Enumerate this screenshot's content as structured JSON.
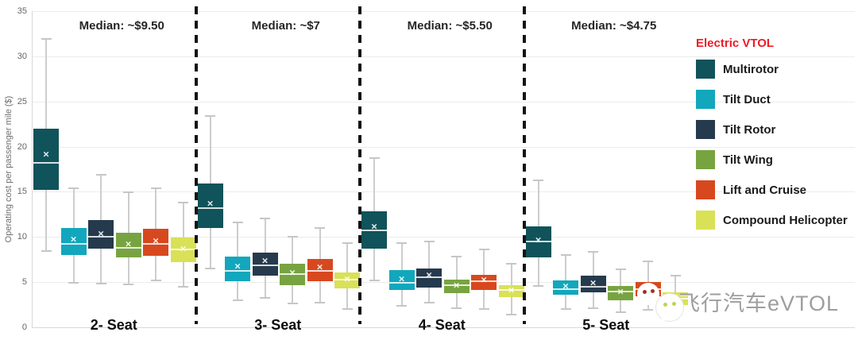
{
  "watermark": {
    "text": "飞行汽车eVTOL"
  },
  "legend": {
    "title": "Electric VTOL",
    "title_color": "#EC1B25",
    "items": [
      {
        "label": "Multirotor",
        "color": "#10535A"
      },
      {
        "label": "Tilt Duct",
        "color": "#12A7BC"
      },
      {
        "label": "Tilt Rotor",
        "color": "#263A4D"
      },
      {
        "label": "Tilt Wing",
        "color": "#77A440"
      },
      {
        "label": "Lift and Cruise",
        "color": "#D8481F"
      },
      {
        "label": "Compound Helicopter",
        "color": "#D9E157"
      }
    ]
  },
  "chart_data": {
    "type": "boxplot",
    "ylabel": "Operating cost per passenger mile ($)",
    "ylim": [
      0,
      35
    ],
    "yticks": [
      0,
      5,
      10,
      15,
      20,
      25,
      30,
      35
    ],
    "grid": true,
    "legend_position": "right",
    "whisker_color": "#cdcdcd",
    "separator_style": "dashed-black",
    "series": [
      "Multirotor",
      "Tilt Duct",
      "Tilt Rotor",
      "Tilt Wing",
      "Lift and Cruise",
      "Compound Helicopter"
    ],
    "groups": [
      {
        "label": "2- Seat",
        "annotation": "Median: ~$9.50",
        "boxes": [
          {
            "series": "Multirotor",
            "whisker_low": 8.5,
            "q1": 15.2,
            "median": 18.2,
            "mean": 19.2,
            "q3": 22.0,
            "whisker_high": 32.0
          },
          {
            "series": "Tilt Duct",
            "whisker_low": 5.0,
            "q1": 8.0,
            "median": 9.2,
            "mean": 9.8,
            "q3": 11.0,
            "whisker_high": 15.5
          },
          {
            "series": "Tilt Rotor",
            "whisker_low": 4.9,
            "q1": 8.7,
            "median": 10.0,
            "mean": 10.4,
            "q3": 11.9,
            "whisker_high": 17.0
          },
          {
            "series": "Tilt Wing",
            "whisker_low": 4.8,
            "q1": 7.7,
            "median": 8.8,
            "mean": 9.2,
            "q3": 10.5,
            "whisker_high": 15.0
          },
          {
            "series": "Lift and Cruise",
            "whisker_low": 5.3,
            "q1": 7.9,
            "median": 9.2,
            "mean": 9.6,
            "q3": 10.9,
            "whisker_high": 15.5
          },
          {
            "series": "Compound Helicopter",
            "whisker_low": 4.6,
            "q1": 7.2,
            "median": 8.6,
            "mean": 8.7,
            "q3": 9.9,
            "whisker_high": 13.9
          }
        ]
      },
      {
        "label": "3- Seat",
        "annotation": "Median: ~$7",
        "boxes": [
          {
            "series": "Multirotor",
            "whisker_low": 6.6,
            "q1": 11.0,
            "median": 13.2,
            "mean": 13.7,
            "q3": 15.9,
            "whisker_high": 23.5
          },
          {
            "series": "Tilt Duct",
            "whisker_low": 3.1,
            "q1": 5.1,
            "median": 6.2,
            "mean": 6.8,
            "q3": 7.8,
            "whisker_high": 11.7
          },
          {
            "series": "Tilt Rotor",
            "whisker_low": 3.3,
            "q1": 5.7,
            "median": 6.9,
            "mean": 7.4,
            "q3": 8.3,
            "whisker_high": 12.1
          },
          {
            "series": "Tilt Wing",
            "whisker_low": 2.7,
            "q1": 4.7,
            "median": 5.9,
            "mean": 6.1,
            "q3": 7.0,
            "whisker_high": 10.1
          },
          {
            "series": "Lift and Cruise",
            "whisker_low": 2.8,
            "q1": 5.1,
            "median": 6.2,
            "mean": 6.7,
            "q3": 7.6,
            "whisker_high": 11.1
          },
          {
            "series": "Compound Helicopter",
            "whisker_low": 2.1,
            "q1": 4.3,
            "median": 5.3,
            "mean": 5.4,
            "q3": 6.1,
            "whisker_high": 9.4
          }
        ]
      },
      {
        "label": "4- Seat",
        "annotation": "Median: ~$5.50",
        "boxes": [
          {
            "series": "Multirotor",
            "whisker_low": 5.3,
            "q1": 8.7,
            "median": 10.7,
            "mean": 11.2,
            "q3": 12.8,
            "whisker_high": 18.8
          },
          {
            "series": "Tilt Duct",
            "whisker_low": 2.5,
            "q1": 4.1,
            "median": 4.9,
            "mean": 5.4,
            "q3": 6.3,
            "whisker_high": 9.4
          },
          {
            "series": "Tilt Rotor",
            "whisker_low": 2.8,
            "q1": 4.4,
            "median": 5.5,
            "mean": 5.8,
            "q3": 6.5,
            "whisker_high": 9.6
          },
          {
            "series": "Tilt Wing",
            "whisker_low": 2.2,
            "q1": 3.8,
            "median": 4.7,
            "mean": 4.7,
            "q3": 5.3,
            "whisker_high": 7.9
          },
          {
            "series": "Lift and Cruise",
            "whisker_low": 2.1,
            "q1": 4.1,
            "median": 5.1,
            "mean": 5.3,
            "q3": 5.8,
            "whisker_high": 8.7
          },
          {
            "series": "Compound Helicopter",
            "whisker_low": 1.5,
            "q1": 3.3,
            "median": 4.1,
            "mean": 4.1,
            "q3": 4.7,
            "whisker_high": 7.1
          }
        ]
      },
      {
        "label": "5- Seat",
        "annotation": "Median: ~$4.75",
        "boxes": [
          {
            "series": "Multirotor",
            "whisker_low": 4.7,
            "q1": 7.7,
            "median": 9.5,
            "mean": 9.7,
            "q3": 11.2,
            "whisker_high": 16.4
          },
          {
            "series": "Tilt Duct",
            "whisker_low": 2.1,
            "q1": 3.6,
            "median": 4.2,
            "mean": 4.6,
            "q3": 5.2,
            "whisker_high": 8.1
          },
          {
            "series": "Tilt Rotor",
            "whisker_low": 2.2,
            "q1": 3.9,
            "median": 4.5,
            "mean": 4.9,
            "q3": 5.7,
            "whisker_high": 8.4
          },
          {
            "series": "Tilt Wing",
            "whisker_low": 1.8,
            "q1": 3.0,
            "median": 4.0,
            "mean": 4.0,
            "q3": 4.6,
            "whisker_high": 6.5
          },
          {
            "series": "Lift and Cruise",
            "whisker_low": 2.0,
            "q1": 3.4,
            "median": 4.2,
            "mean": 4.4,
            "q3": 5.0,
            "whisker_high": 7.4
          },
          {
            "series": "Compound Helicopter",
            "whisker_low": 1.5,
            "q1": 2.5,
            "median": 3.2,
            "mean": 3.3,
            "q3": 3.9,
            "whisker_high": 5.8
          }
        ]
      }
    ]
  }
}
